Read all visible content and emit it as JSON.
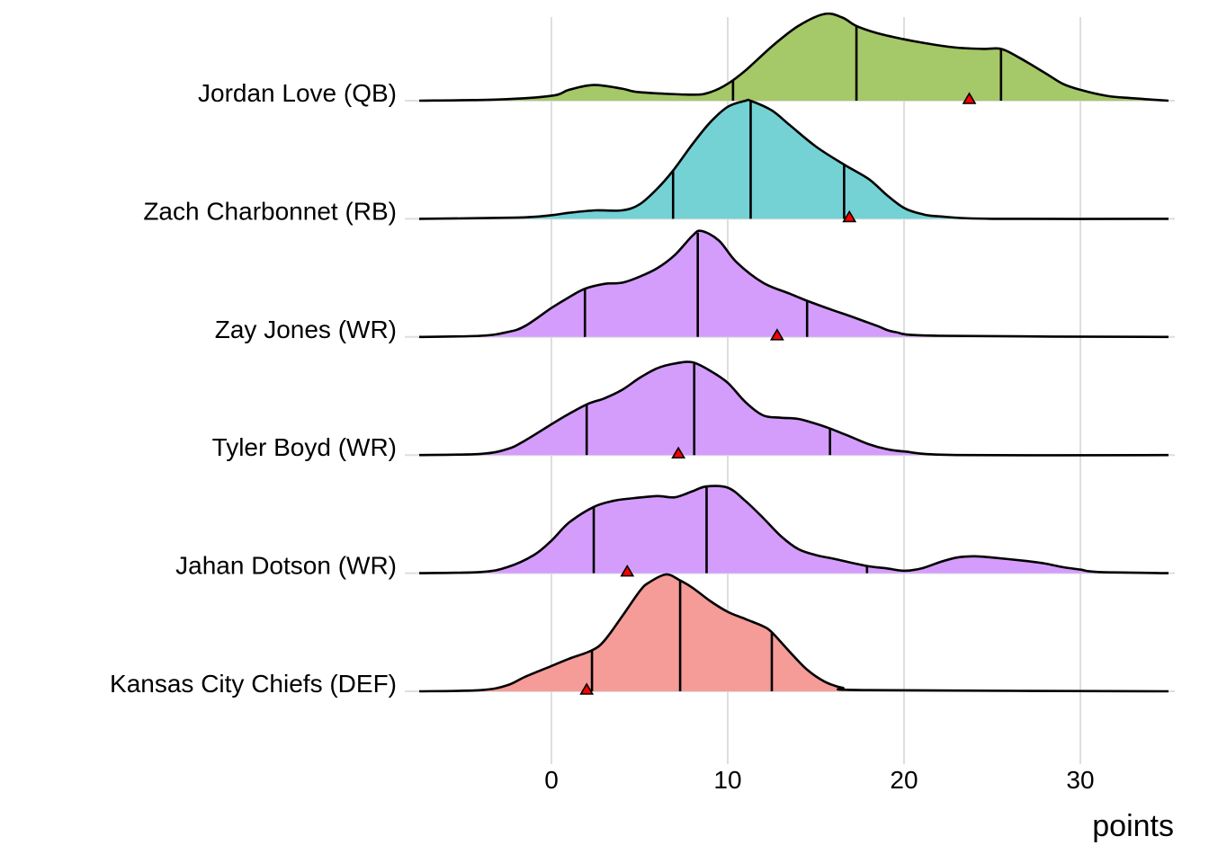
{
  "chart_data": {
    "type": "ridgeline",
    "title": "",
    "xlabel": "points",
    "ylabel": "",
    "xlim": [
      -7.5,
      35
    ],
    "x_ticks": [
      0,
      10,
      20,
      30
    ],
    "x_tick_labels": [
      "0",
      "10",
      "20",
      "30"
    ],
    "grid": "vertical major gridlines on",
    "legend": "none",
    "marker_color": "#ff0000",
    "series": [
      {
        "name": "Jordan Love (QB)",
        "fill": "#a5c868",
        "quantiles": [
          10.3,
          17.3,
          25.5
        ],
        "actual": 23.7,
        "density": [
          [
            -7.5,
            0
          ],
          [
            -3,
            0.01
          ],
          [
            0,
            0.04
          ],
          [
            1,
            0.09
          ],
          [
            2.4,
            0.13
          ],
          [
            4,
            0.1
          ],
          [
            5,
            0.07
          ],
          [
            8,
            0.05
          ],
          [
            9,
            0.07
          ],
          [
            10,
            0.14
          ],
          [
            11,
            0.25
          ],
          [
            12.5,
            0.45
          ],
          [
            14,
            0.62
          ],
          [
            15.5,
            0.72
          ],
          [
            16.5,
            0.69
          ],
          [
            17.3,
            0.62
          ],
          [
            18.5,
            0.56
          ],
          [
            20,
            0.51
          ],
          [
            21.5,
            0.47
          ],
          [
            23,
            0.44
          ],
          [
            24.5,
            0.43
          ],
          [
            25.5,
            0.43
          ],
          [
            26.5,
            0.36
          ],
          [
            28,
            0.23
          ],
          [
            29,
            0.14
          ],
          [
            30,
            0.09
          ],
          [
            31.5,
            0.04
          ],
          [
            33,
            0.02
          ],
          [
            35,
            0
          ]
        ]
      },
      {
        "name": "Zach Charbonnet (RB)",
        "fill": "#74d2d4",
        "quantiles": [
          6.9,
          11.3,
          16.6
        ],
        "actual": 16.9,
        "density": [
          [
            -7.5,
            0
          ],
          [
            -2,
            0.01
          ],
          [
            0,
            0.03
          ],
          [
            1,
            0.05
          ],
          [
            2.5,
            0.07
          ],
          [
            4,
            0.07
          ],
          [
            5,
            0.12
          ],
          [
            6,
            0.25
          ],
          [
            6.9,
            0.4
          ],
          [
            8,
            0.62
          ],
          [
            9,
            0.8
          ],
          [
            10,
            0.93
          ],
          [
            11,
            0.98
          ],
          [
            11.3,
            0.98
          ],
          [
            12.5,
            0.9
          ],
          [
            13.5,
            0.78
          ],
          [
            15,
            0.6
          ],
          [
            16.6,
            0.45
          ],
          [
            18,
            0.33
          ],
          [
            19,
            0.2
          ],
          [
            20,
            0.09
          ],
          [
            21,
            0.04
          ],
          [
            22,
            0.02
          ],
          [
            25,
            0
          ],
          [
            35,
            0
          ]
        ]
      },
      {
        "name": "Zay Jones (WR)",
        "fill": "#d49dfc",
        "quantiles": [
          1.9,
          8.3,
          14.5
        ],
        "actual": 12.8,
        "density": [
          [
            -7.5,
            0
          ],
          [
            -4,
            0.01
          ],
          [
            -2.5,
            0.04
          ],
          [
            -1.5,
            0.09
          ],
          [
            0,
            0.24
          ],
          [
            1,
            0.33
          ],
          [
            1.9,
            0.4
          ],
          [
            3,
            0.44
          ],
          [
            4,
            0.45
          ],
          [
            5,
            0.5
          ],
          [
            6,
            0.57
          ],
          [
            7,
            0.68
          ],
          [
            8,
            0.84
          ],
          [
            8.5,
            0.88
          ],
          [
            9.5,
            0.8
          ],
          [
            10.5,
            0.62
          ],
          [
            12,
            0.45
          ],
          [
            13.5,
            0.36
          ],
          [
            14.5,
            0.3
          ],
          [
            16,
            0.22
          ],
          [
            17,
            0.17
          ],
          [
            18.5,
            0.09
          ],
          [
            19.5,
            0.04
          ],
          [
            22,
            0.01
          ],
          [
            35,
            0
          ]
        ]
      },
      {
        "name": "Tyler Boyd (WR)",
        "fill": "#d49dfc",
        "quantiles": [
          2.0,
          8.1,
          15.8
        ],
        "actual": 7.2,
        "density": [
          [
            -7.5,
            0
          ],
          [
            -4,
            0.01
          ],
          [
            -2.5,
            0.05
          ],
          [
            -1.5,
            0.12
          ],
          [
            0.5,
            0.3
          ],
          [
            2,
            0.42
          ],
          [
            3,
            0.47
          ],
          [
            4,
            0.54
          ],
          [
            5,
            0.64
          ],
          [
            6,
            0.72
          ],
          [
            7,
            0.76
          ],
          [
            8,
            0.77
          ],
          [
            9,
            0.7
          ],
          [
            10,
            0.6
          ],
          [
            11,
            0.44
          ],
          [
            12,
            0.33
          ],
          [
            13,
            0.31
          ],
          [
            14,
            0.3
          ],
          [
            15,
            0.26
          ],
          [
            15.8,
            0.22
          ],
          [
            17,
            0.15
          ],
          [
            18,
            0.09
          ],
          [
            19,
            0.05
          ],
          [
            20,
            0.03
          ],
          [
            23,
            0
          ],
          [
            35,
            0
          ]
        ]
      },
      {
        "name": "Jahan Dotson (WR)",
        "fill": "#d49dfc",
        "quantiles": [
          2.4,
          8.8,
          17.9
        ],
        "actual": 4.3,
        "density": [
          [
            -7.5,
            0
          ],
          [
            -4,
            0.01
          ],
          [
            -2.5,
            0.05
          ],
          [
            -1,
            0.15
          ],
          [
            0,
            0.27
          ],
          [
            1,
            0.42
          ],
          [
            2.4,
            0.55
          ],
          [
            3.5,
            0.6
          ],
          [
            4.5,
            0.62
          ],
          [
            6,
            0.64
          ],
          [
            7,
            0.63
          ],
          [
            8,
            0.68
          ],
          [
            8.8,
            0.72
          ],
          [
            10,
            0.71
          ],
          [
            11,
            0.6
          ],
          [
            12,
            0.46
          ],
          [
            13,
            0.31
          ],
          [
            14,
            0.2
          ],
          [
            15,
            0.15
          ],
          [
            16,
            0.12
          ],
          [
            17.9,
            0.06
          ],
          [
            19,
            0.04
          ],
          [
            20,
            0.02
          ],
          [
            21,
            0.04
          ],
          [
            22,
            0.09
          ],
          [
            23,
            0.13
          ],
          [
            24,
            0.14
          ],
          [
            25,
            0.13
          ],
          [
            27,
            0.1
          ],
          [
            28,
            0.08
          ],
          [
            29,
            0.05
          ],
          [
            30,
            0.03
          ],
          [
            31,
            0.01
          ],
          [
            35,
            0
          ]
        ]
      },
      {
        "name": "Kansas City Chiefs (DEF)",
        "fill": "#f59c98",
        "quantiles": [
          2.3,
          7.3,
          12.5
        ],
        "actual": 2.0,
        "density": [
          [
            -7.5,
            0
          ],
          [
            -4,
            0.01
          ],
          [
            -2.5,
            0.05
          ],
          [
            -1.5,
            0.12
          ],
          [
            0,
            0.21
          ],
          [
            1,
            0.27
          ],
          [
            2.3,
            0.34
          ],
          [
            3,
            0.42
          ],
          [
            4,
            0.62
          ],
          [
            5,
            0.83
          ],
          [
            5.5,
            0.9
          ],
          [
            6.5,
            0.97
          ],
          [
            7.3,
            0.92
          ],
          [
            8,
            0.86
          ],
          [
            9,
            0.75
          ],
          [
            10,
            0.66
          ],
          [
            11,
            0.6
          ],
          [
            12,
            0.54
          ],
          [
            12.5,
            0.49
          ],
          [
            13.5,
            0.33
          ],
          [
            14.5,
            0.18
          ],
          [
            15.5,
            0.08
          ],
          [
            16.5,
            0.03
          ],
          [
            18,
            0.01
          ],
          [
            35,
            0
          ]
        ]
      }
    ]
  }
}
